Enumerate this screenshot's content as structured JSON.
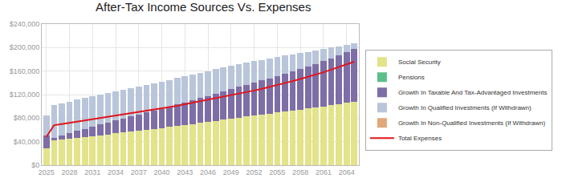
{
  "chart_data": {
    "type": "bar",
    "title": "After-Tax Income Sources Vs. Expenses",
    "stacked": true,
    "grid": true,
    "legend": "right",
    "categories": [
      "2025",
      null,
      null,
      "2028",
      null,
      null,
      "2031",
      null,
      null,
      "2034",
      null,
      null,
      "2037",
      null,
      null,
      "2040",
      null,
      null,
      "2043",
      null,
      null,
      "2046",
      null,
      null,
      "2049",
      null,
      null,
      "2052",
      null,
      null,
      "2055",
      null,
      null,
      "2058",
      null,
      null,
      "2061",
      null,
      null,
      "2064",
      null
    ],
    "ylim": [
      0,
      240000
    ],
    "yticks": [
      {
        "value": 0,
        "label": "$0"
      },
      {
        "value": 40000,
        "label": "$40,000"
      },
      {
        "value": 80000,
        "label": "$80,000"
      },
      {
        "value": 120000,
        "label": "$120,000"
      },
      {
        "value": 160000,
        "label": "$160,000"
      },
      {
        "value": 200000,
        "label": "$200,000"
      },
      {
        "value": 240000,
        "label": "$240,000"
      }
    ],
    "series": [
      {
        "name": "Social Security",
        "color": "#e3e38a",
        "type": "bar",
        "values": [
          28000,
          42000,
          43500,
          45000,
          46500,
          48000,
          49500,
          51000,
          52500,
          54000,
          55500,
          57000,
          58500,
          60000,
          61500,
          63000,
          64800,
          66600,
          68400,
          70200,
          72000,
          73800,
          75600,
          77400,
          79200,
          81000,
          82700,
          84400,
          86100,
          87800,
          89500,
          91200,
          92900,
          94600,
          96300,
          98000,
          100000,
          102000,
          104000,
          106000,
          108000
        ]
      },
      {
        "name": "Pensions",
        "color": "#5cbf8a",
        "type": "bar",
        "values": [
          0,
          0,
          0,
          0,
          0,
          0,
          0,
          0,
          0,
          0,
          0,
          0,
          0,
          0,
          0,
          0,
          0,
          0,
          0,
          0,
          0,
          0,
          0,
          0,
          0,
          0,
          0,
          0,
          0,
          0,
          0,
          0,
          0,
          0,
          0,
          0,
          0,
          0,
          0,
          0,
          0
        ]
      },
      {
        "name": "Growth In Taxable And Tax-Advantaged Investments",
        "color": "#7d6ea6",
        "type": "bar",
        "values": [
          22000,
          4000,
          6500,
          9000,
          11500,
          14000,
          16000,
          18000,
          20000,
          22000,
          24000,
          25800,
          27600,
          29400,
          31200,
          33000,
          34800,
          36600,
          38400,
          40200,
          42000,
          44000,
          46000,
          48000,
          50000,
          52000,
          54000,
          56000,
          58000,
          60000,
          62000,
          64400,
          66800,
          69200,
          71600,
          74000,
          77000,
          80000,
          83000,
          86000,
          90000
        ]
      },
      {
        "name": "Growth In Qualified Investments (If Withdrawn)",
        "color": "#b9c5da",
        "type": "bar",
        "values": [
          35000,
          56000,
          55000,
          54000,
          53500,
          53000,
          52100,
          51200,
          50300,
          49400,
          48500,
          48000,
          47500,
          47000,
          46500,
          46000,
          45400,
          44800,
          44200,
          43600,
          43000,
          42200,
          41400,
          40600,
          39800,
          39000,
          37700,
          36400,
          35100,
          33800,
          32500,
          30600,
          28700,
          26800,
          24900,
          23000,
          20400,
          17800,
          15200,
          12600,
          9000
        ]
      },
      {
        "name": "Growth In Non-Qualified Investments (If Withdrawn)",
        "color": "#e3a77c",
        "type": "bar",
        "values": [
          0,
          0,
          0,
          0,
          0,
          0,
          0,
          0,
          0,
          0,
          0,
          0,
          0,
          0,
          0,
          0,
          0,
          0,
          0,
          0,
          0,
          0,
          0,
          0,
          0,
          0,
          0,
          0,
          0,
          0,
          0,
          0,
          0,
          0,
          0,
          0,
          0,
          0,
          0,
          0,
          0
        ]
      },
      {
        "name": "Total Expenses",
        "color": "#e0161b",
        "type": "line",
        "line_style": "solid",
        "values": [
          48000,
          68000,
          70000,
          72000,
          74000,
          76000,
          78000,
          80000,
          82000,
          84000,
          86000,
          88000,
          90000,
          92000,
          94000,
          96000,
          98500,
          101000,
          103500,
          106000,
          108500,
          111000,
          113500,
          116000,
          118500,
          121000,
          124000,
          127000,
          130000,
          133000,
          136000,
          139500,
          143000,
          146500,
          150000,
          153500,
          158000,
          162500,
          167000,
          171500,
          176000
        ]
      }
    ]
  }
}
